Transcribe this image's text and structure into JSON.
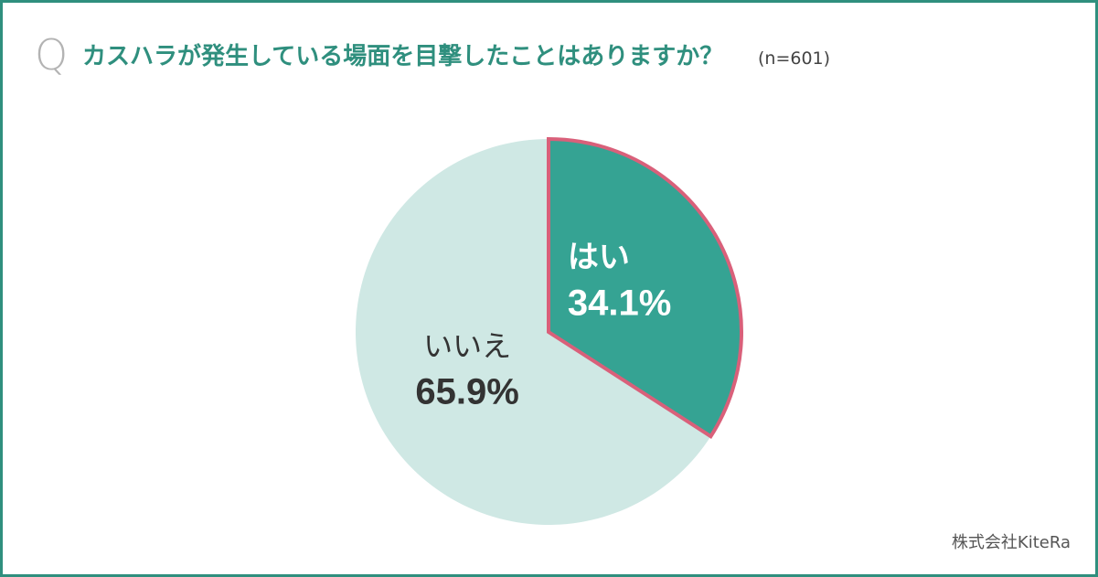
{
  "question": {
    "mark": "Q",
    "text": "カスハラが発生している場面を目撃したことはありますか？",
    "sample": "(n=601)"
  },
  "chart_data": {
    "type": "pie",
    "title": "カスハラが発生している場面を目撃したことはありますか？",
    "slices": [
      {
        "label": "はい",
        "value": 34.1,
        "display": "34.1%",
        "color": "#35a393",
        "outline": "#d9607a",
        "text_color": "#ffffff"
      },
      {
        "label": "いいえ",
        "value": 65.9,
        "display": "65.9%",
        "color": "#cfe8e4",
        "outline": null,
        "text_color": "#333333"
      }
    ],
    "start": "12 o'clock",
    "direction": "clockwise",
    "legend": "none (labels on slices)"
  },
  "footer": {
    "credit": "株式会社KiteRa"
  },
  "colors": {
    "frame": "#2f8f7e",
    "title": "#2f8f7e",
    "q_mark": "#b3b3b3"
  }
}
